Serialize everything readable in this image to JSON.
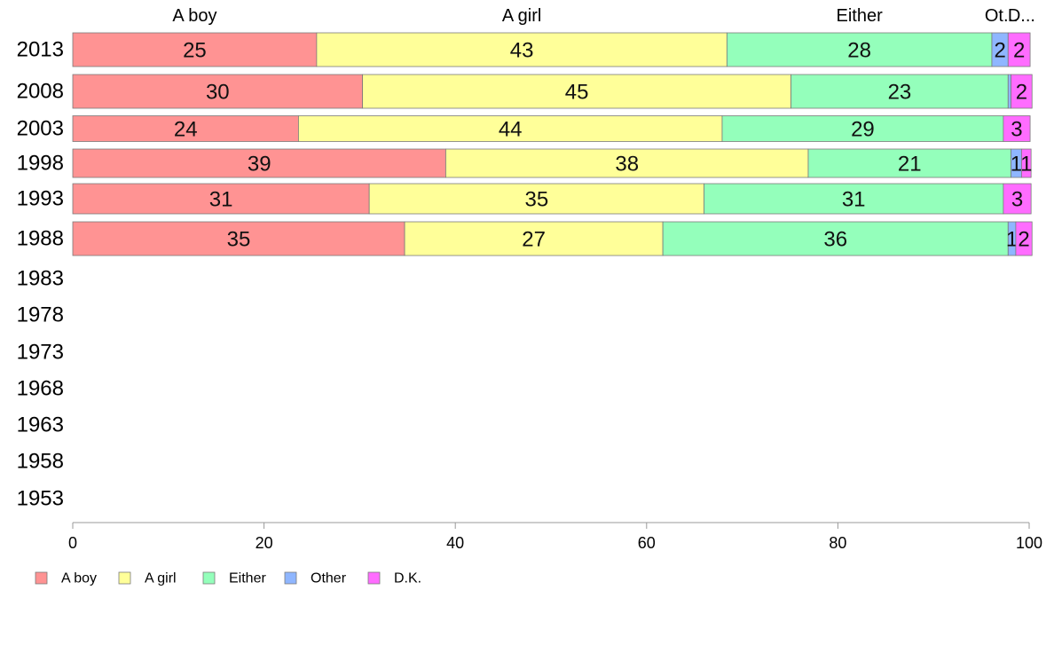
{
  "chart_data": {
    "type": "bar",
    "orientation": "horizontal",
    "stacked": true,
    "categories": [
      "2013",
      "2008",
      "2003",
      "1998",
      "1993",
      "1988",
      "1983",
      "1978",
      "1973",
      "1968",
      "1963",
      "1958",
      "1953"
    ],
    "column_headers": [
      "A boy",
      "A girl",
      "Either",
      "Ot...",
      "D..."
    ],
    "series": [
      {
        "name": "A boy",
        "color": "#ff9393",
        "values": [
          25.5,
          30.3,
          23.6,
          39,
          31,
          34.7,
          null,
          null,
          null,
          null,
          null,
          null,
          null
        ],
        "labels": [
          "25",
          "30",
          "24",
          "39",
          "31",
          "35",
          "",
          "",
          "",
          "",
          "",
          "",
          ""
        ]
      },
      {
        "name": "A girl",
        "color": "#ffff99",
        "values": [
          42.9,
          44.8,
          44.3,
          37.9,
          35,
          27,
          null,
          null,
          null,
          null,
          null,
          null,
          null
        ],
        "labels": [
          "43",
          "45",
          "44",
          "38",
          "35",
          "27",
          "",
          "",
          "",
          "",
          "",
          "",
          ""
        ]
      },
      {
        "name": "Either",
        "color": "#94ffbb",
        "values": [
          27.7,
          22.7,
          29.4,
          21.2,
          31.3,
          36.1,
          null,
          null,
          null,
          null,
          null,
          null,
          null
        ],
        "labels": [
          "28",
          "23",
          "29",
          "21",
          "31",
          "36",
          "",
          "",
          "",
          "",
          "",
          "",
          ""
        ]
      },
      {
        "name": "Other",
        "color": "#8fb6ff",
        "values": [
          1.7,
          0.3,
          0,
          1.1,
          0,
          0.8,
          null,
          null,
          null,
          null,
          null,
          null,
          null
        ],
        "labels": [
          "2",
          "",
          "",
          "1",
          "",
          "1",
          "",
          "",
          "",
          "",
          "",
          "",
          ""
        ]
      },
      {
        "name": "D.K.",
        "color": "#ff6cff",
        "values": [
          2.3,
          2.2,
          2.8,
          1,
          2.9,
          1.7,
          null,
          null,
          null,
          null,
          null,
          null,
          null
        ],
        "labels": [
          "2",
          "2",
          "3",
          "1",
          "3",
          "2",
          "",
          "",
          "",
          "",
          "",
          "",
          ""
        ]
      }
    ],
    "x_ticks": [
      "0",
      "20",
      "40",
      "60",
      "80",
      "100"
    ],
    "xlim": [
      0,
      100
    ],
    "legend": {
      "position": "bottom-left",
      "entries": [
        "A boy",
        "A girl",
        "Either",
        "Other",
        "D.K."
      ]
    },
    "grid": false,
    "title": "",
    "xlabel": "",
    "ylabel": ""
  }
}
